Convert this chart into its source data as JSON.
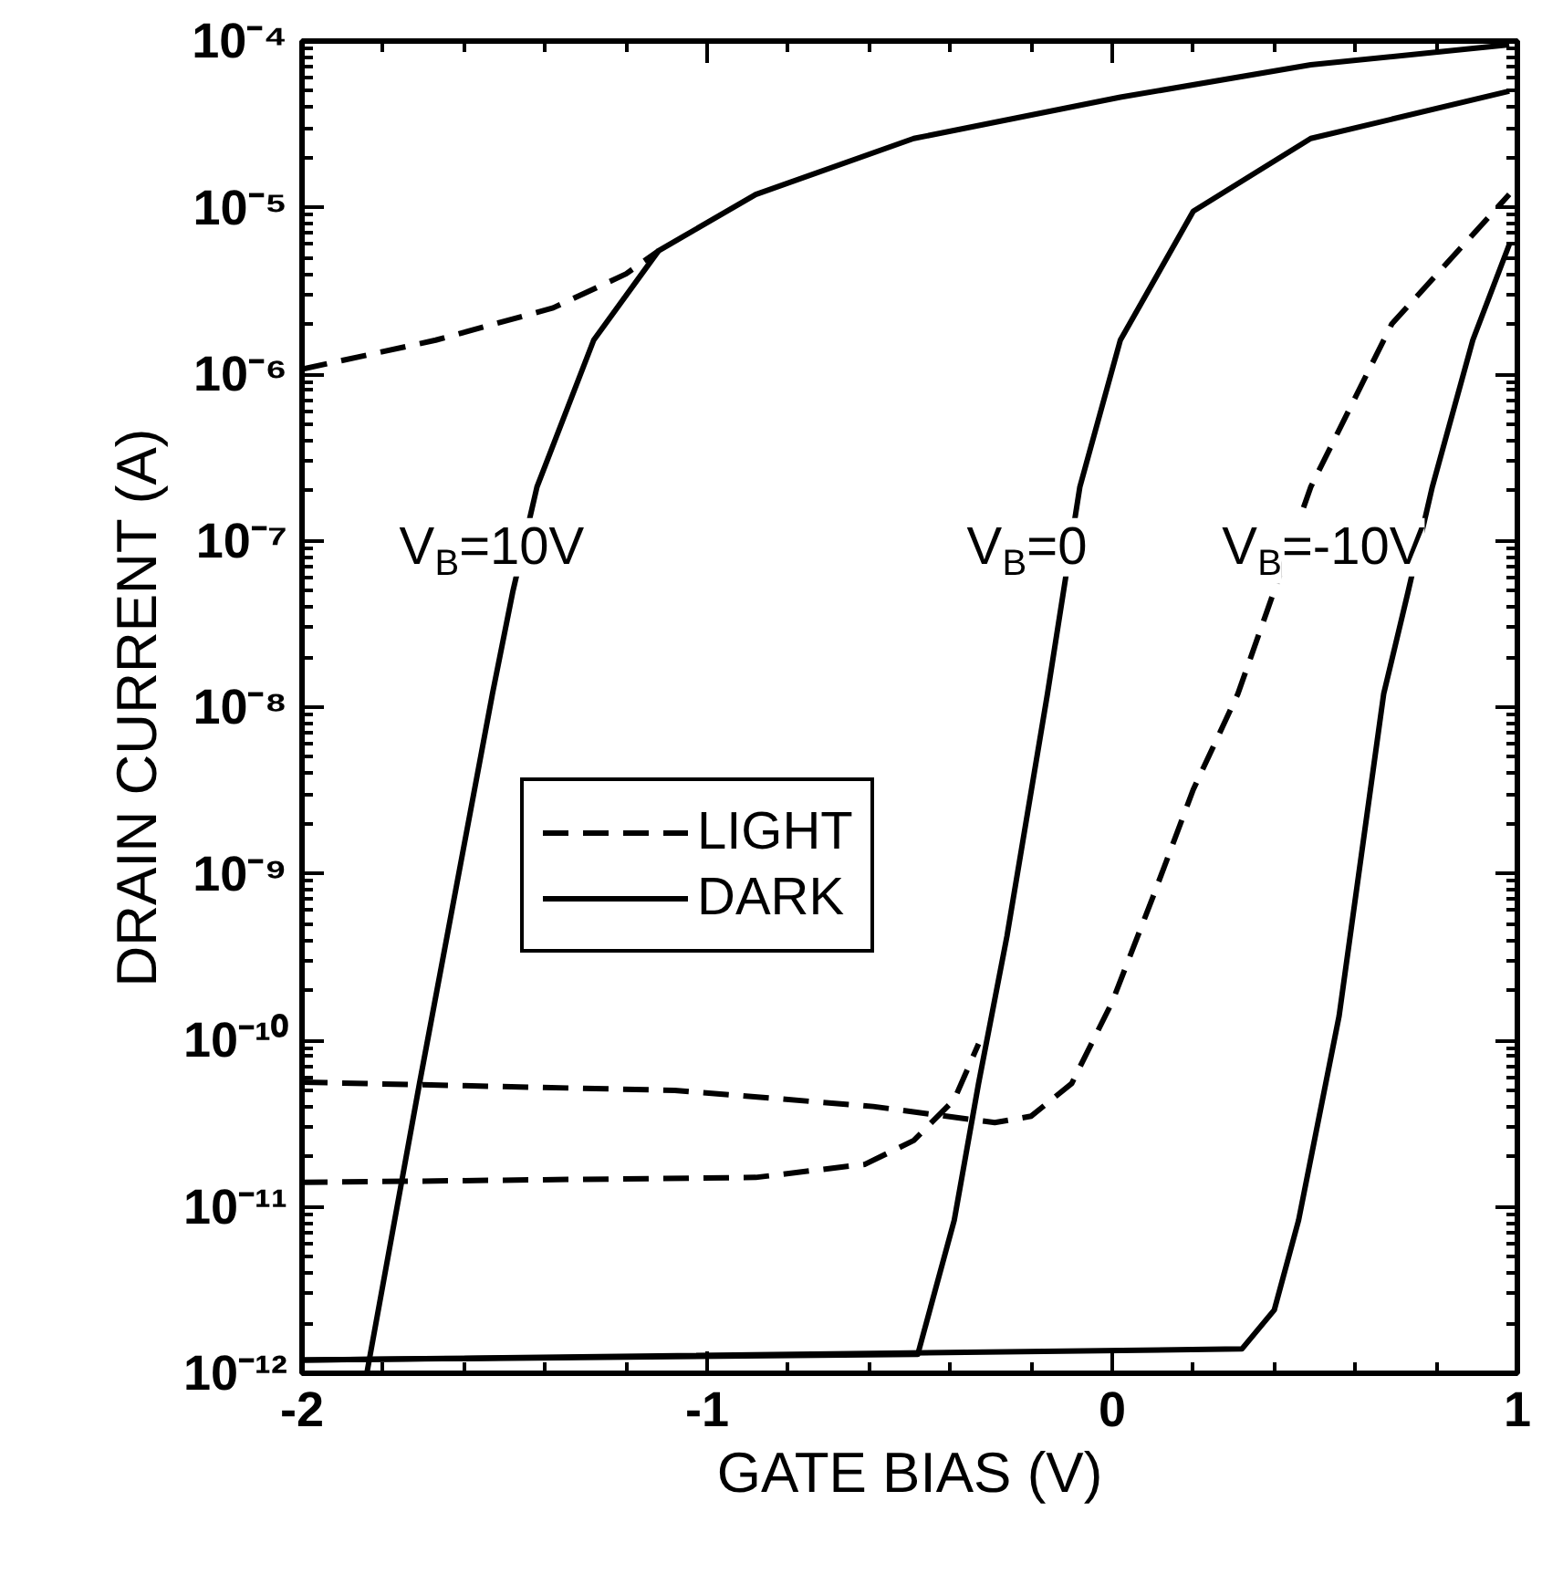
{
  "chart_data": {
    "type": "line",
    "xlabel": "GATE BIAS (V)",
    "ylabel": "DRAIN CURRENT (A)",
    "xlim": [
      -2,
      1
    ],
    "xticks": [
      -2,
      -1,
      0,
      1
    ],
    "ylim": [
      1e-12,
      0.0001
    ],
    "log": "y",
    "yticks": [
      {
        "value": 1e-12,
        "label": "10⁻¹²"
      },
      {
        "value": 1e-11,
        "label": "10⁻¹¹"
      },
      {
        "value": 1e-10,
        "label": "10⁻¹⁰"
      },
      {
        "value": 1e-09,
        "label": "10⁻⁹"
      },
      {
        "value": 1e-08,
        "label": "10⁻⁸"
      },
      {
        "value": 1e-07,
        "label": "10⁻⁷"
      },
      {
        "value": 1e-06,
        "label": "10⁻⁶"
      },
      {
        "value": 1e-05,
        "label": "10⁻⁵"
      },
      {
        "value": 0.0001,
        "label": "10⁻⁴"
      }
    ],
    "grid": false,
    "legend": "center left",
    "series": [
      {
        "name": "LIGHT",
        "color": "#000000",
        "line_style": "dashed",
        "x": [
          -2,
          -1.67,
          -1.38,
          -1.2,
          -1.12
        ],
        "values": [
          1.07e-06,
          1.6e-06,
          2.5e-06,
          4e-06,
          5.5e-06
        ]
      },
      {
        "name": "DARK",
        "color": "#000000",
        "line_style": "solid",
        "x": [
          -1.84,
          -1.71,
          -1.53,
          -1.48,
          -1.42,
          -1.28,
          -1.12,
          -0.88,
          -0.49,
          0.02,
          0.49,
          0.98
        ],
        "values": [
          1e-12,
          5.5e-11,
          1.2e-08,
          4.9e-08,
          2.1e-07,
          1.6e-06,
          5.5e-06,
          1.2e-05,
          2.6e-05,
          4.6e-05,
          7.2e-05,
          9.5e-05
        ]
      },
      {
        "color": "#000000",
        "line_style": "dashed",
        "x": [
          -2,
          -0.88,
          -0.61,
          -0.49,
          -0.39,
          -0.33
        ],
        "values": [
          1.4e-11,
          1.5e-11,
          1.8e-11,
          2.5e-11,
          4.4e-11,
          9.5e-11
        ]
      },
      {
        "color": "#000000",
        "line_style": "solid",
        "x": [
          -2,
          -0.48,
          -0.39,
          -0.33,
          -0.26,
          -0.16,
          -0.08,
          0.02,
          0.2,
          0.49,
          0.98
        ],
        "values": [
          1.2e-12,
          1.3e-12,
          8.3e-12,
          5.5e-11,
          4.2e-10,
          1.2e-08,
          2.1e-07,
          1.6e-06,
          9.5e-06,
          2.6e-05,
          5e-05
        ]
      },
      {
        "color": "#000000",
        "line_style": "dashed",
        "x": [
          -2,
          -1.08,
          -0.59,
          -0.29,
          -0.2,
          -0.1,
          0.0,
          0.1,
          0.2,
          0.31,
          0.49,
          0.69,
          0.98
        ],
        "values": [
          5.6e-11,
          5e-11,
          4e-11,
          3.2e-11,
          3.5e-11,
          5.5e-11,
          1.7e-10,
          7.2e-10,
          3.2e-09,
          1.2e-08,
          2.1e-07,
          2e-06,
          1.2e-05
        ]
      },
      {
        "color": "#000000",
        "line_style": "solid",
        "x": [
          -2,
          0.32,
          0.4,
          0.46,
          0.56,
          0.67,
          0.73,
          0.79,
          0.89,
          0.98
        ],
        "values": [
          1.2e-12,
          1.4e-12,
          2.4e-12,
          8.3e-12,
          1.4e-10,
          1.2e-08,
          4.9e-08,
          2.1e-07,
          1.6e-06,
          6e-06
        ]
      }
    ],
    "annotations": [
      "V$_{B}$=10V",
      "V$_{B}$=0",
      "V$_{B}$=-10V"
    ]
  }
}
